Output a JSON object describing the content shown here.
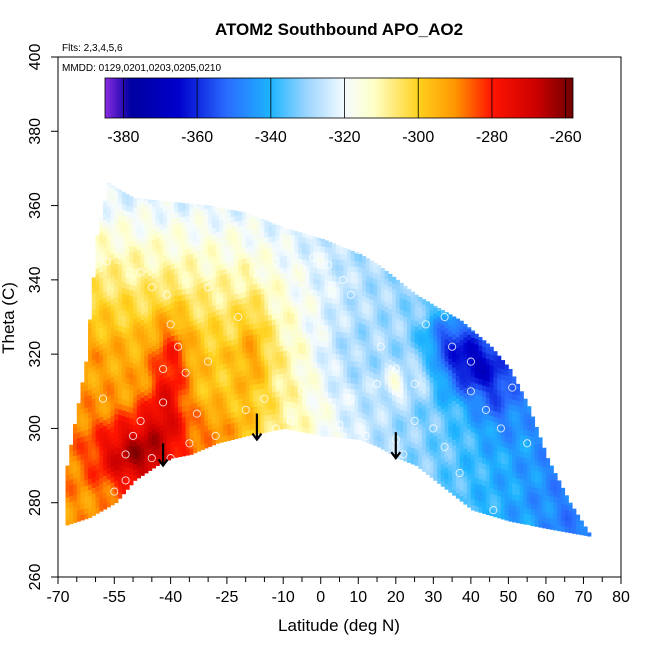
{
  "chart_data": {
    "type": "heatmap",
    "title": "ATOM2 Southbound APO_AO2",
    "subtitle_flights": "Flts: 2,3,4,5,6",
    "subtitle_dates": "MMDD: 0129,0201,0203,0205,0210",
    "xlabel": "Latitude (deg N)",
    "ylabel": "Theta (C)",
    "xlim": [
      -70,
      80
    ],
    "ylim": [
      260,
      400
    ],
    "x_ticks": [
      -70,
      -55,
      -40,
      -25,
      -10,
      0,
      10,
      20,
      30,
      40,
      50,
      60,
      70,
      80
    ],
    "x_tick_labels": [
      "-70",
      "-55",
      "-40",
      "-25",
      "-10",
      "0",
      "10",
      "20",
      "30",
      "40",
      "50",
      "60",
      "70",
      "80"
    ],
    "x_minor_ticks": [
      -65,
      -60,
      -50,
      -45,
      -35,
      -30,
      -20,
      -15,
      -5,
      5,
      15,
      25,
      35,
      45,
      55,
      65,
      75
    ],
    "y_ticks": [
      260,
      280,
      300,
      320,
      340,
      360,
      380,
      400
    ],
    "y_tick_labels": [
      "260",
      "280",
      "300",
      "320",
      "340",
      "360",
      "380",
      "400"
    ],
    "colorbar": {
      "min": -385,
      "max": -258,
      "ticks": [
        -380,
        -360,
        -340,
        -320,
        -300,
        -280,
        -260
      ],
      "tick_labels": [
        "-380",
        "-360",
        "-340",
        "-320",
        "-300",
        "-280",
        "-260"
      ],
      "stops": [
        {
          "value": -385,
          "color": "#8a2be2"
        },
        {
          "value": -378,
          "color": "#0000a0"
        },
        {
          "value": -365,
          "color": "#0000cd"
        },
        {
          "value": -352,
          "color": "#2a6cff"
        },
        {
          "value": -340,
          "color": "#1eb4ff"
        },
        {
          "value": -330,
          "color": "#9ed6ff"
        },
        {
          "value": -320,
          "color": "#f4fbff"
        },
        {
          "value": -312,
          "color": "#ffffc8"
        },
        {
          "value": -300,
          "color": "#ffd21e"
        },
        {
          "value": -290,
          "color": "#ff9600"
        },
        {
          "value": -280,
          "color": "#ff1400"
        },
        {
          "value": -268,
          "color": "#cc0000"
        },
        {
          "value": -258,
          "color": "#6e0000"
        }
      ]
    },
    "field": {
      "lat_start": -68,
      "lat_end": 71,
      "lat_step": 1,
      "theta_step": 1.5,
      "upper_boundary": [
        {
          "lat": -68,
          "theta": 290
        },
        {
          "lat": -63,
          "theta": 318
        },
        {
          "lat": -60,
          "theta": 352
        },
        {
          "lat": -57,
          "theta": 366
        },
        {
          "lat": -50,
          "theta": 362
        },
        {
          "lat": -40,
          "theta": 361
        },
        {
          "lat": -30,
          "theta": 360
        },
        {
          "lat": -20,
          "theta": 358
        },
        {
          "lat": -10,
          "theta": 354
        },
        {
          "lat": 0,
          "theta": 351
        },
        {
          "lat": 10,
          "theta": 347
        },
        {
          "lat": 15,
          "theta": 344
        },
        {
          "lat": 20,
          "theta": 340
        },
        {
          "lat": 25,
          "theta": 336
        },
        {
          "lat": 30,
          "theta": 333
        },
        {
          "lat": 37,
          "theta": 329
        },
        {
          "lat": 45,
          "theta": 322
        },
        {
          "lat": 50,
          "theta": 316
        },
        {
          "lat": 55,
          "theta": 306
        },
        {
          "lat": 60,
          "theta": 292
        },
        {
          "lat": 66,
          "theta": 280
        },
        {
          "lat": 71,
          "theta": 272
        }
      ],
      "lower_boundary": [
        {
          "lat": -68,
          "theta": 274
        },
        {
          "lat": -62,
          "theta": 276
        },
        {
          "lat": -55,
          "theta": 280
        },
        {
          "lat": -50,
          "theta": 286
        },
        {
          "lat": -44,
          "theta": 290
        },
        {
          "lat": -40,
          "theta": 292
        },
        {
          "lat": -35,
          "theta": 293
        },
        {
          "lat": -28,
          "theta": 296
        },
        {
          "lat": -20,
          "theta": 298
        },
        {
          "lat": -10,
          "theta": 300
        },
        {
          "lat": -5,
          "theta": 299
        },
        {
          "lat": 0,
          "theta": 298
        },
        {
          "lat": 10,
          "theta": 297
        },
        {
          "lat": 15,
          "theta": 295
        },
        {
          "lat": 20,
          "theta": 292
        },
        {
          "lat": 25,
          "theta": 290
        },
        {
          "lat": 30,
          "theta": 286
        },
        {
          "lat": 35,
          "theta": 282
        },
        {
          "lat": 40,
          "theta": 278
        },
        {
          "lat": 50,
          "theta": 275
        },
        {
          "lat": 60,
          "theta": 273
        },
        {
          "lat": 71,
          "theta": 271
        }
      ],
      "anomalies": [
        {
          "lat": -48,
          "theta": 293,
          "value": 30,
          "slat": 12,
          "stheta": 10
        },
        {
          "lat": -40,
          "theta": 318,
          "value": 16,
          "slat": 5,
          "stheta": 14
        },
        {
          "lat": -42,
          "theta": 305,
          "value": 12,
          "slat": 6,
          "stheta": 8
        },
        {
          "lat": -18,
          "theta": 322,
          "value": 9,
          "slat": 4,
          "stheta": 14
        },
        {
          "lat": -28,
          "theta": 300,
          "value": 8,
          "slat": 8,
          "stheta": 6
        },
        {
          "lat": 40,
          "theta": 318,
          "value": -28,
          "slat": 9,
          "stheta": 9
        },
        {
          "lat": 33,
          "theta": 325,
          "value": -12,
          "slat": 6,
          "stheta": 6
        },
        {
          "lat": 47,
          "theta": 308,
          "value": -10,
          "slat": 6,
          "stheta": 10
        },
        {
          "lat": 20,
          "theta": 312,
          "value": 14,
          "slat": 3,
          "stheta": 4
        },
        {
          "lat": 27,
          "theta": 314,
          "value": 8,
          "slat": 3,
          "stheta": 5
        },
        {
          "lat": 5,
          "theta": 320,
          "value": -6,
          "slat": 10,
          "stheta": 12
        }
      ]
    },
    "sample_points": [
      {
        "lat": -57,
        "theta": 345
      },
      {
        "lat": -48,
        "theta": 342
      },
      {
        "lat": -45,
        "theta": 338
      },
      {
        "lat": -41,
        "theta": 336
      },
      {
        "lat": -30,
        "theta": 338
      },
      {
        "lat": -18,
        "theta": 342
      },
      {
        "lat": -12,
        "theta": 345
      },
      {
        "lat": -5,
        "theta": 343
      },
      {
        "lat": -2,
        "theta": 346
      },
      {
        "lat": 2,
        "theta": 344
      },
      {
        "lat": 6,
        "theta": 340
      },
      {
        "lat": 10,
        "theta": 348
      },
      {
        "lat": 8,
        "theta": 336
      },
      {
        "lat": -40,
        "theta": 328
      },
      {
        "lat": -38,
        "theta": 322
      },
      {
        "lat": -42,
        "theta": 316
      },
      {
        "lat": -36,
        "theta": 315
      },
      {
        "lat": -30,
        "theta": 318
      },
      {
        "lat": -22,
        "theta": 330
      },
      {
        "lat": -20,
        "theta": 305
      },
      {
        "lat": -15,
        "theta": 308
      },
      {
        "lat": -12,
        "theta": 300
      },
      {
        "lat": -8,
        "theta": 302
      },
      {
        "lat": -5,
        "theta": 310
      },
      {
        "lat": 0,
        "theta": 305
      },
      {
        "lat": 5,
        "theta": 301
      },
      {
        "lat": 8,
        "theta": 308
      },
      {
        "lat": 15,
        "theta": 312
      },
      {
        "lat": 16,
        "theta": 322
      },
      {
        "lat": 20,
        "theta": 316
      },
      {
        "lat": 25,
        "theta": 312
      },
      {
        "lat": 28,
        "theta": 328
      },
      {
        "lat": 33,
        "theta": 330
      },
      {
        "lat": 35,
        "theta": 322
      },
      {
        "lat": 40,
        "theta": 318
      },
      {
        "lat": 40,
        "theta": 310
      },
      {
        "lat": 44,
        "theta": 305
      },
      {
        "lat": 48,
        "theta": 300
      },
      {
        "lat": 51,
        "theta": 311
      },
      {
        "lat": 55,
        "theta": 296
      },
      {
        "lat": 30,
        "theta": 300
      },
      {
        "lat": 33,
        "theta": 295
      },
      {
        "lat": 37,
        "theta": 288
      },
      {
        "lat": 46,
        "theta": 278
      },
      {
        "lat": 25,
        "theta": 302
      },
      {
        "lat": 20,
        "theta": 297
      },
      {
        "lat": 22,
        "theta": 293
      },
      {
        "lat": 12,
        "theta": 298
      },
      {
        "lat": -50,
        "theta": 298
      },
      {
        "lat": -52,
        "theta": 293
      },
      {
        "lat": -48,
        "theta": 302
      },
      {
        "lat": -55,
        "theta": 283
      },
      {
        "lat": -45,
        "theta": 292
      },
      {
        "lat": -40,
        "theta": 292
      },
      {
        "lat": -35,
        "theta": 296
      },
      {
        "lat": -28,
        "theta": 298
      },
      {
        "lat": -52,
        "theta": 286
      },
      {
        "lat": -42,
        "theta": 307
      },
      {
        "lat": -33,
        "theta": 304
      },
      {
        "lat": 55,
        "theta": 273
      },
      {
        "lat": 64,
        "theta": 297
      },
      {
        "lat": 45,
        "theta": 328
      },
      {
        "lat": -58,
        "theta": 308
      }
    ],
    "arrows": [
      {
        "lat": -42,
        "theta_top": 296,
        "theta_tip": 290
      },
      {
        "lat": -17,
        "theta_top": 304,
        "theta_tip": 297
      },
      {
        "lat": 20,
        "theta_top": 299,
        "theta_tip": 292
      }
    ]
  }
}
